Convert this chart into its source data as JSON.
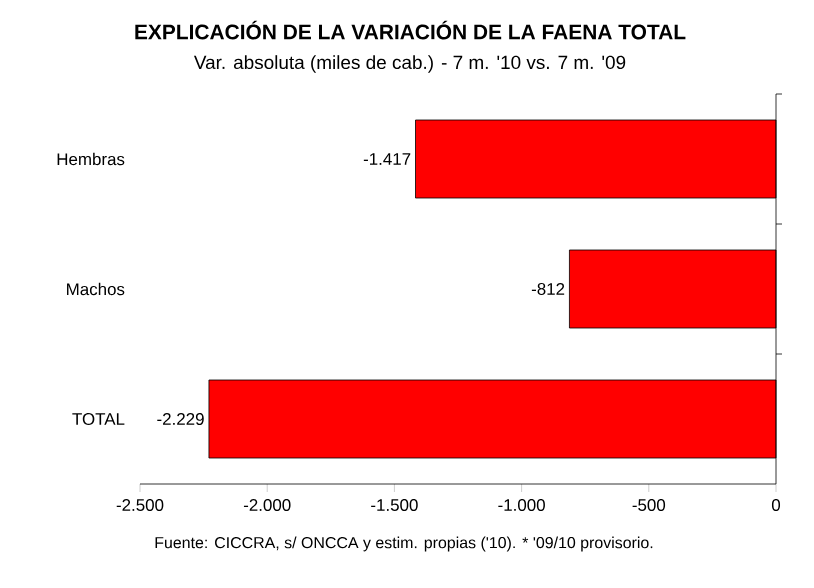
{
  "chart_data": {
    "type": "bar",
    "orientation": "horizontal",
    "title": "EXPLICACIÓN DE LA VARIACIÓN DE LA FAENA TOTAL",
    "subtitle": "Var. absoluta (miles de cab.) - 7 m. '10 vs. 7 m. '09",
    "categories": [
      "Hembras",
      "Machos",
      "TOTAL"
    ],
    "values": [
      -1417,
      -812,
      -2229
    ],
    "value_labels": [
      "-1.417",
      "-812",
      "-2.229"
    ],
    "color": "#ff0000",
    "xlim": [
      -2500,
      0
    ],
    "xticks": [
      {
        "value": -2500,
        "label": "-2.500"
      },
      {
        "value": -2000,
        "label": "-2.000"
      },
      {
        "value": -1500,
        "label": "-1.500"
      },
      {
        "value": -1000,
        "label": "-1.000"
      },
      {
        "value": -500,
        "label": "-500"
      },
      0
    ],
    "annotations": [
      "Fuente: CICCRA, s/ ONCCA y estim. propias ('10). * '09/10 provisorio."
    ]
  }
}
